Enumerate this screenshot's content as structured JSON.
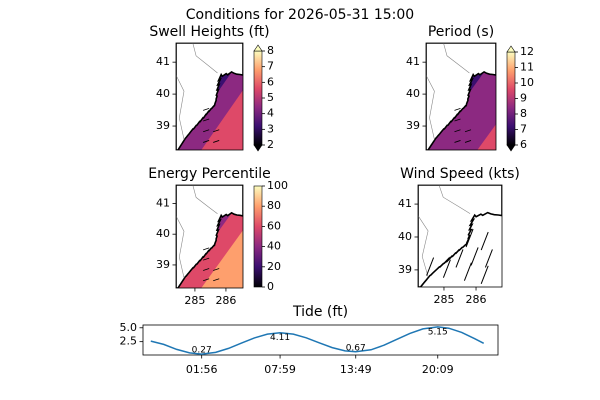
{
  "title": "Conditions for 2026-05-31 15:00",
  "colormap": [
    "#000004",
    "#3b0f70",
    "#8c2981",
    "#de4968",
    "#fe9f6d",
    "#fcfdbf"
  ],
  "chart_data": [
    {
      "type": "map",
      "title": "Swell Heights (ft)",
      "xlim": [
        284.39,
        286.55
      ],
      "ylim": [
        38.25,
        41.6
      ],
      "yticks": [
        39,
        40,
        41
      ],
      "colorbar": {
        "lim": [
          2,
          8
        ],
        "ticks": [
          2,
          3,
          4,
          5,
          6,
          7,
          8
        ],
        "extend": "both"
      }
    },
    {
      "type": "map",
      "title": "Period (s)",
      "xlim": [
        284.39,
        286.55
      ],
      "ylim": [
        38.25,
        41.6
      ],
      "yticks": [
        39,
        40,
        41
      ],
      "colorbar": {
        "lim": [
          6,
          12
        ],
        "ticks": [
          6,
          7,
          8,
          9,
          10,
          11,
          12
        ],
        "extend": "both"
      }
    },
    {
      "type": "map",
      "title": "Energy Percentile",
      "xlim": [
        284.39,
        286.55
      ],
      "ylim": [
        38.25,
        41.6
      ],
      "yticks": [
        39,
        40,
        41
      ],
      "xticks": [
        285,
        286
      ],
      "colorbar": {
        "lim": [
          0,
          100
        ],
        "ticks": [
          0,
          20,
          40,
          60,
          80,
          100
        ],
        "extend": "neither"
      }
    },
    {
      "type": "map",
      "title": "Wind Speed (kts)",
      "xlim": [
        284.19,
        286.81
      ],
      "ylim": [
        38.48,
        41.58
      ],
      "yticks": [
        39,
        40,
        41
      ],
      "xticks": [
        285,
        286
      ]
    },
    {
      "type": "line",
      "title": "Tide (ft)",
      "color": "#1f77b4",
      "x": [
        -2,
        -1,
        0,
        1,
        1.93,
        3,
        4,
        5,
        6,
        7,
        7.98,
        9,
        10,
        11,
        12,
        13,
        13.82,
        15,
        16,
        17,
        18,
        19,
        20.15,
        21,
        22,
        23,
        23.7
      ],
      "values": [
        2.6,
        2.0,
        1.11,
        0.48,
        0.27,
        0.56,
        1.28,
        2.24,
        3.18,
        3.87,
        4.11,
        3.86,
        3.19,
        2.3,
        1.43,
        0.84,
        0.67,
        1.04,
        1.86,
        2.93,
        3.99,
        4.79,
        5.15,
        4.93,
        4.16,
        3.04,
        2.2
      ],
      "xlim": [
        -2.6,
        24.8
      ],
      "ylim": [
        0.1,
        5.5
      ],
      "xticks": [
        {
          "value": 1.93,
          "label": "01:56"
        },
        {
          "value": 7.98,
          "label": "07:59"
        },
        {
          "value": 13.82,
          "label": "13:49"
        },
        {
          "value": 20.15,
          "label": "20:09"
        }
      ],
      "yticks": [
        2.5,
        {
          "value": 5,
          "label": "5.0"
        }
      ],
      "annotations": [
        {
          "x": 1.93,
          "value": 0.27
        },
        {
          "x": 7.98,
          "value": 4.11
        },
        {
          "x": 13.82,
          "value": 0.67
        },
        {
          "x": 20.15,
          "value": 5.15
        }
      ]
    }
  ]
}
